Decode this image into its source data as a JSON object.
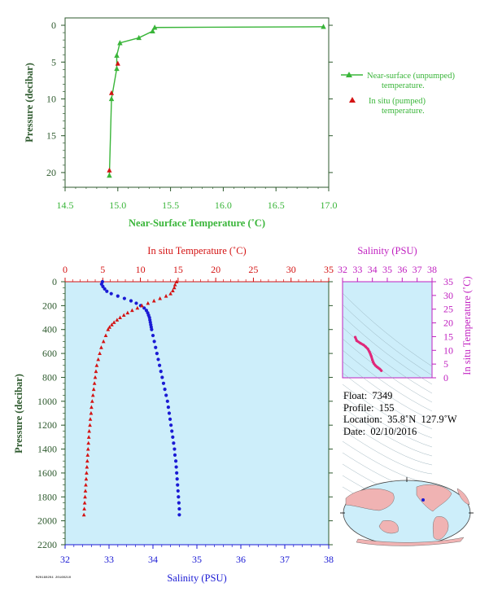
{
  "chart_data": [
    {
      "type": "line",
      "xlabel": "Near-Surface Temperature (˚C)",
      "ylabel": "Pressure (decibar)",
      "xlim": [
        14.5,
        17.0
      ],
      "ylim": [
        22,
        -1
      ],
      "xticks": [
        "14.5",
        "15.0",
        "15.5",
        "16.0",
        "16.5",
        "17.0"
      ],
      "yticks": [
        "0",
        "5",
        "10",
        "15",
        "20"
      ],
      "legend": "right",
      "series": [
        {
          "name": "Near-surface (unpumped) temperature.",
          "color": "#39b539",
          "marker": "triangle",
          "points": [
            [
              16.95,
              0.2
            ],
            [
              15.35,
              0.3
            ],
            [
              15.33,
              0.8
            ],
            [
              15.2,
              1.7
            ],
            [
              15.02,
              2.4
            ],
            [
              14.99,
              4.1
            ],
            [
              14.99,
              5.9
            ],
            [
              14.94,
              10.0
            ],
            [
              14.92,
              20.4
            ]
          ]
        },
        {
          "name": "In situ (pumped) temperature.",
          "color": "#d41313",
          "marker": "triangle",
          "points": [
            [
              15.0,
              5.2
            ],
            [
              14.94,
              9.2
            ],
            [
              14.92,
              19.7
            ]
          ]
        }
      ]
    },
    {
      "type": "scatter",
      "title_top": "In situ Temperature (˚C)",
      "xlabel": "Salinity (PSU)",
      "ylabel": "Pressure (decibar)",
      "temp_xlim": [
        0,
        35
      ],
      "sal_xlim": [
        32,
        38
      ],
      "ylim": [
        2200,
        0
      ],
      "temp_ticks": [
        "0",
        "5",
        "10",
        "15",
        "20",
        "25",
        "30",
        "35"
      ],
      "sal_ticks": [
        "32",
        "33",
        "34",
        "35",
        "36",
        "37",
        "38"
      ],
      "yticks": [
        "0",
        "200",
        "400",
        "600",
        "800",
        "1000",
        "1200",
        "1400",
        "1600",
        "1800",
        "2000",
        "2200"
      ],
      "temperature_profile": {
        "color": "#d41313",
        "points": [
          [
            14.8,
            0
          ],
          [
            14.6,
            25
          ],
          [
            14.5,
            50
          ],
          [
            14.3,
            75
          ],
          [
            14.0,
            100
          ],
          [
            13.4,
            120
          ],
          [
            12.6,
            140
          ],
          [
            11.8,
            160
          ],
          [
            11.0,
            180
          ],
          [
            10.2,
            200
          ],
          [
            9.6,
            220
          ],
          [
            8.9,
            240
          ],
          [
            8.3,
            260
          ],
          [
            7.8,
            280
          ],
          [
            7.3,
            300
          ],
          [
            6.9,
            320
          ],
          [
            6.5,
            340
          ],
          [
            6.2,
            360
          ],
          [
            5.9,
            380
          ],
          [
            5.7,
            400
          ],
          [
            5.4,
            450
          ],
          [
            5.1,
            500
          ],
          [
            4.8,
            550
          ],
          [
            4.6,
            600
          ],
          [
            4.4,
            650
          ],
          [
            4.2,
            700
          ],
          [
            4.1,
            750
          ],
          [
            4.0,
            800
          ],
          [
            3.9,
            850
          ],
          [
            3.8,
            900
          ],
          [
            3.7,
            950
          ],
          [
            3.6,
            1000
          ],
          [
            3.5,
            1050
          ],
          [
            3.45,
            1100
          ],
          [
            3.35,
            1150
          ],
          [
            3.3,
            1200
          ],
          [
            3.2,
            1250
          ],
          [
            3.15,
            1300
          ],
          [
            3.1,
            1350
          ],
          [
            3.05,
            1400
          ],
          [
            3.0,
            1450
          ],
          [
            2.95,
            1500
          ],
          [
            2.9,
            1550
          ],
          [
            2.85,
            1600
          ],
          [
            2.8,
            1650
          ],
          [
            2.75,
            1700
          ],
          [
            2.7,
            1750
          ],
          [
            2.65,
            1800
          ],
          [
            2.6,
            1850
          ],
          [
            2.55,
            1900
          ],
          [
            2.5,
            1950
          ]
        ]
      },
      "salinity_profile": {
        "color": "#1a1ad4",
        "points": [
          [
            32.85,
            0
          ],
          [
            32.83,
            20
          ],
          [
            32.86,
            40
          ],
          [
            32.9,
            60
          ],
          [
            32.95,
            80
          ],
          [
            33.05,
            100
          ],
          [
            33.2,
            120
          ],
          [
            33.35,
            140
          ],
          [
            33.5,
            160
          ],
          [
            33.62,
            180
          ],
          [
            33.72,
            200
          ],
          [
            33.8,
            220
          ],
          [
            33.85,
            240
          ],
          [
            33.88,
            260
          ],
          [
            33.9,
            280
          ],
          [
            33.92,
            300
          ],
          [
            33.93,
            320
          ],
          [
            33.94,
            340
          ],
          [
            33.95,
            360
          ],
          [
            33.96,
            380
          ],
          [
            33.97,
            400
          ],
          [
            34.0,
            450
          ],
          [
            34.03,
            500
          ],
          [
            34.06,
            550
          ],
          [
            34.09,
            600
          ],
          [
            34.12,
            650
          ],
          [
            34.15,
            700
          ],
          [
            34.18,
            750
          ],
          [
            34.21,
            800
          ],
          [
            34.24,
            850
          ],
          [
            34.27,
            900
          ],
          [
            34.3,
            950
          ],
          [
            34.33,
            1000
          ],
          [
            34.35,
            1050
          ],
          [
            34.37,
            1100
          ],
          [
            34.39,
            1150
          ],
          [
            34.41,
            1200
          ],
          [
            34.43,
            1250
          ],
          [
            34.45,
            1300
          ],
          [
            34.47,
            1350
          ],
          [
            34.49,
            1400
          ],
          [
            34.5,
            1450
          ],
          [
            34.52,
            1500
          ],
          [
            34.53,
            1550
          ],
          [
            34.54,
            1600
          ],
          [
            34.55,
            1650
          ],
          [
            34.56,
            1700
          ],
          [
            34.57,
            1750
          ],
          [
            34.58,
            1800
          ],
          [
            34.59,
            1850
          ],
          [
            34.6,
            1900
          ],
          [
            34.6,
            1950
          ]
        ]
      }
    },
    {
      "type": "scatter",
      "xlabel": "Salinity (PSU)",
      "ylabel": "In situ Temperature (˚C)",
      "xlim": [
        32,
        38
      ],
      "ylim": [
        0,
        35
      ],
      "xticks": [
        "32",
        "33",
        "34",
        "35",
        "36",
        "37",
        "38"
      ],
      "yticks": [
        "0",
        "5",
        "10",
        "15",
        "20",
        "25",
        "30",
        "35"
      ],
      "color": "#e0287a",
      "points": [
        [
          32.85,
          14.8
        ],
        [
          32.95,
          13.5
        ],
        [
          33.2,
          12.6
        ],
        [
          33.4,
          12.0
        ],
        [
          33.55,
          11.3
        ],
        [
          33.7,
          10.5
        ],
        [
          33.8,
          9.5
        ],
        [
          33.88,
          8.5
        ],
        [
          33.93,
          7.8
        ],
        [
          34.0,
          6.5
        ],
        [
          34.05,
          5.8
        ],
        [
          34.1,
          5.2
        ],
        [
          34.2,
          4.5
        ],
        [
          34.3,
          4.0
        ],
        [
          34.4,
          3.6
        ],
        [
          34.5,
          3.2
        ],
        [
          34.6,
          2.6
        ]
      ]
    }
  ],
  "float_info": {
    "float": "Float:  7349",
    "profile": "Profile:  155",
    "location": "Location:  35.8˚N  127.9˚W",
    "date": "Date:  02/10/2016"
  },
  "legend": {
    "unpumped_line1": "Near-surface (unpumped)",
    "unpumped_line2": "temperature.",
    "pumped_line1": "In situ (pumped)",
    "pumped_line2": "temperature."
  },
  "colors": {
    "green": "#39b539",
    "red": "#d41313",
    "blue": "#1a1ad4",
    "magenta": "#c020c0",
    "axis_dark": "#2e5a2e",
    "panel_bg": "#cdeefa",
    "land": "#f0b3b3"
  },
  "footnote": "M20160204 20160210"
}
